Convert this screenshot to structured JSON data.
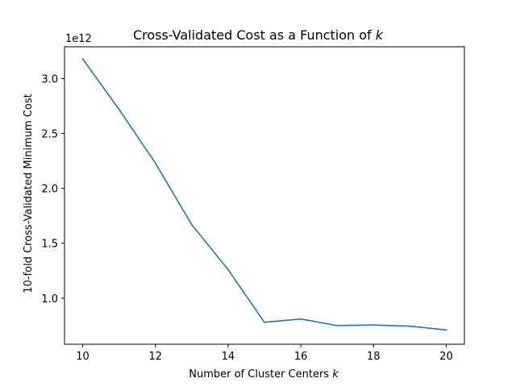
{
  "chart_data": {
    "type": "line",
    "title_prefix": "Cross-Validated Cost as a Function of ",
    "title_var": "k",
    "xlabel_prefix": "Number of Cluster Centers ",
    "xlabel_var": "k",
    "ylabel": "10-fold Cross-Validated Minimum Cost",
    "y_offset_text": "1e12",
    "x": [
      10,
      11,
      12,
      13,
      14,
      15,
      16,
      17,
      18,
      19,
      20
    ],
    "series": [
      {
        "color": "#1f77b4",
        "values": [
          3.18,
          2.72,
          2.23,
          1.67,
          1.26,
          0.78,
          0.81,
          0.75,
          0.755,
          0.745,
          0.71
        ]
      }
    ],
    "xlim": [
      9.5,
      20.5
    ],
    "ylim": [
      0.58,
      3.29
    ],
    "xticks": [
      10,
      12,
      14,
      16,
      18,
      20
    ],
    "xtick_labels": [
      "10",
      "12",
      "14",
      "16",
      "18",
      "20"
    ],
    "yticks": [
      1.0,
      1.5,
      2.0,
      2.5,
      3.0
    ],
    "ytick_labels": [
      "1.0",
      "1.5",
      "2.0",
      "2.5",
      "3.0"
    ],
    "grid": false,
    "legend": false
  }
}
